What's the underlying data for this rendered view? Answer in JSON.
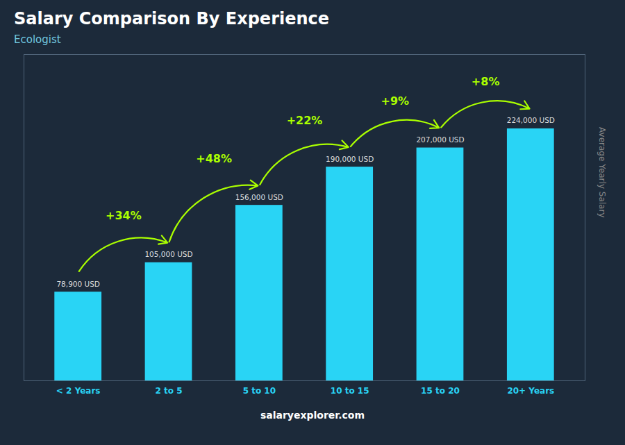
{
  "chart_data": {
    "type": "bar",
    "title": "Salary Comparison By Experience",
    "subtitle": "Ecologist",
    "ylabel": "Average Yearly Salary",
    "categories": [
      "< 2 Years",
      "2 to 5",
      "5 to 10",
      "10 to 15",
      "15 to 20",
      "20+ Years"
    ],
    "values": [
      78900,
      105000,
      156000,
      190000,
      207000,
      224000
    ],
    "value_labels": [
      "78,900 USD",
      "105,000 USD",
      "156,000 USD",
      "190,000 USD",
      "207,000 USD",
      "224,000 USD"
    ],
    "data_labels": true,
    "annotations": [
      "+34%",
      "+48%",
      "+22%",
      "+9%",
      "+8%"
    ],
    "caption": "salaryexplorer.com",
    "color": "#29d4f5",
    "ylim": [
      0,
      290000
    ],
    "tick_labels": "x"
  }
}
